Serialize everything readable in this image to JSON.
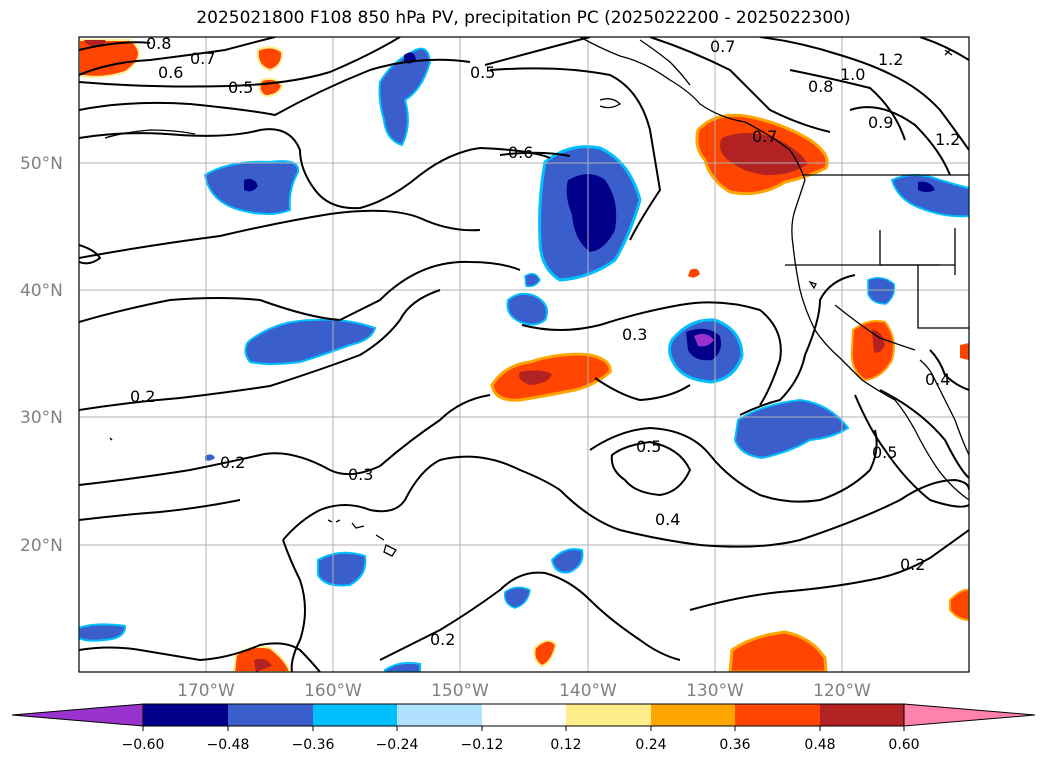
{
  "title": "2025021800 F108 850 hPa PV, precipitation PC (2025022200 - 2025022300)",
  "lat_labels": [
    "50°N",
    "40°N",
    "30°N",
    "20°N"
  ],
  "lon_labels": [
    "170°W",
    "160°W",
    "150°W",
    "140°W",
    "130°W",
    "120°W"
  ],
  "contour_labels": [
    "0.8",
    "0.7",
    "0.6",
    "0.5",
    "0.5",
    "0.6",
    "0.7",
    "0.8",
    "1.0",
    "1.2",
    "0.9",
    "1.2",
    "0.7",
    "0.3",
    "0.2",
    "0.2",
    "0.3",
    "0.5",
    "0.4",
    "0.5",
    "0.4",
    "0.2",
    "0.2"
  ],
  "colorbar": {
    "ticks": [
      "−0.60",
      "−0.48",
      "−0.36",
      "−0.24",
      "−0.12",
      "0.12",
      "0.24",
      "0.36",
      "0.48",
      "0.60"
    ],
    "colors": [
      "#9a32cd",
      "#00008b",
      "#3a5fcd",
      "#00bfff",
      "#b0e2ff",
      "#ffffff",
      "#ffec8b",
      "#ffa500",
      "#ff4500",
      "#b22222",
      "#ff82ab"
    ]
  }
}
